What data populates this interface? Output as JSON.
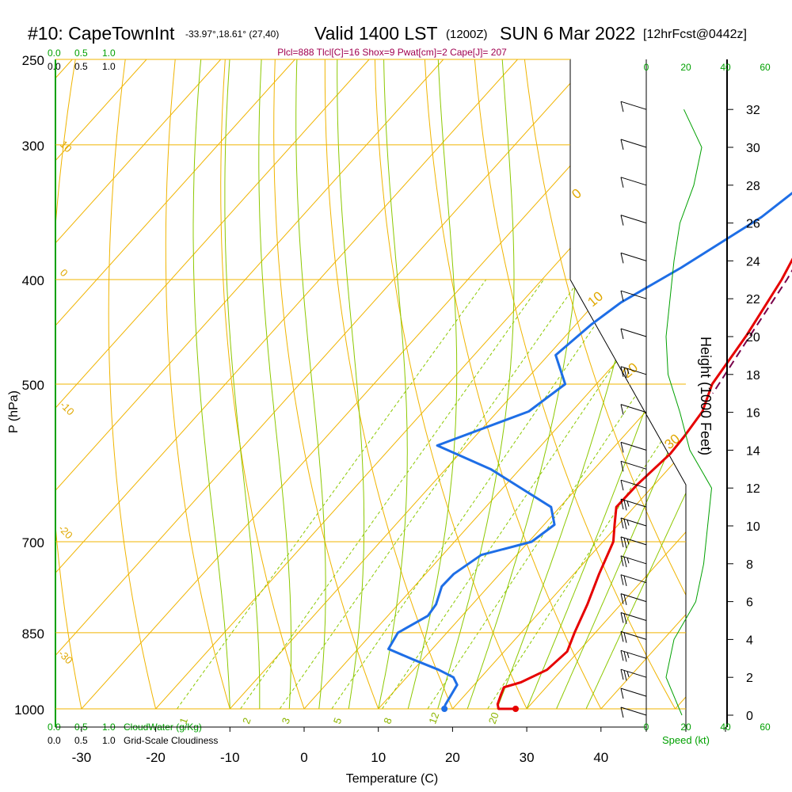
{
  "header": {
    "station": "#10: CapeTownInt",
    "coords": "-33.97°,18.61° (27,40)",
    "valid": "Valid 1400 LST",
    "zulu": "(1200Z)",
    "date": "SUN 6 Mar 2022",
    "forecast": "[12hrFcst@0442z]",
    "indices": "Plcl=888 Tlcl[C]=16 Shox=9 Pwat[cm]=2 Cape[J]= 207"
  },
  "axes": {
    "xlabel": "Temperature (C)",
    "ylabel": "P (hPa)",
    "height_label": "Height (1000 Feet)",
    "speed_label": "Speed (kt)",
    "cloudwater_label": "CloudWater (g/Kg)",
    "cloudiness_label": "Grid-Scale Cloudiness",
    "cloud_scale_green": [
      "0.0",
      "0.5",
      "1.0"
    ],
    "cloud_scale_black": [
      "0.0",
      "0.5",
      "1.0"
    ],
    "speed_ticks_green": [
      "0",
      "20",
      "40",
      "60"
    ],
    "speed_ticks_black": [
      "0",
      "20",
      "40"
    ]
  },
  "colors": {
    "isotherm": "#f0b400",
    "dry_adiabat": "#f0b400",
    "moist_adiabat": "#8cc800",
    "mixing_ratio": "#8cc800",
    "temperature": "#e60000",
    "dewpoint": "#1e6ee6",
    "parcel": "#78004a",
    "indices": "#a00050",
    "cloud_green": "#00a000"
  },
  "chart_data": {
    "type": "line",
    "diagram": "skew-T log-P",
    "pressure_ticks": [
      250,
      300,
      400,
      500,
      700,
      850,
      1000
    ],
    "temperature_ticks": [
      -30,
      -20,
      -10,
      0,
      10,
      20,
      30,
      40
    ],
    "height_ticks_kft": [
      0,
      2,
      4,
      6,
      8,
      10,
      12,
      14,
      16,
      18,
      20,
      22,
      24,
      26,
      28,
      30,
      32
    ],
    "mixing_ratio_labels": [
      "1",
      "2",
      "3",
      "5",
      "8",
      "12",
      "20"
    ],
    "isotherm_labels": [
      "10",
      "0",
      "-10",
      "-20",
      "-30"
    ],
    "dry_adiabat_labels": [
      "0",
      "10",
      "20",
      "30"
    ],
    "series": [
      {
        "name": "Temperature",
        "points": [
          [
            1000,
            28.5
          ],
          [
            1000,
            26.2
          ],
          [
            990,
            25.5
          ],
          [
            970,
            24.8
          ],
          [
            955,
            24.3
          ],
          [
            945,
            26.0
          ],
          [
            920,
            28.0
          ],
          [
            885,
            28.5
          ],
          [
            850,
            27.2
          ],
          [
            800,
            25.5
          ],
          [
            750,
            23.4
          ],
          [
            700,
            21.4
          ],
          [
            675,
            19.5
          ],
          [
            650,
            17.6
          ],
          [
            620,
            17.7
          ],
          [
            580,
            18.4
          ],
          [
            560,
            18.2
          ],
          [
            530,
            17.6
          ],
          [
            500,
            15.6
          ],
          [
            450,
            14.3
          ],
          [
            400,
            12.3
          ],
          [
            350,
            9.2
          ],
          [
            300,
            6.1
          ],
          [
            270,
            3.3
          ],
          [
            258,
            1.9
          ]
        ]
      },
      {
        "name": "Dewpoint",
        "points": [
          [
            1000,
            18.8
          ],
          [
            990,
            18.5
          ],
          [
            950,
            17.7
          ],
          [
            935,
            16.3
          ],
          [
            920,
            13.4
          ],
          [
            900,
            8.7
          ],
          [
            880,
            4.1
          ],
          [
            850,
            3.4
          ],
          [
            820,
            5.4
          ],
          [
            800,
            5.1
          ],
          [
            770,
            3.7
          ],
          [
            750,
            3.8
          ],
          [
            720,
            5.2
          ],
          [
            700,
            10.4
          ],
          [
            675,
            11.4
          ],
          [
            650,
            8.8
          ],
          [
            600,
            -3.8
          ],
          [
            570,
            -14.0
          ],
          [
            530,
            -5.8
          ],
          [
            500,
            -4.2
          ],
          [
            470,
            -9.0
          ],
          [
            440,
            -7.9
          ],
          [
            420,
            -6.6
          ],
          [
            390,
            -2.7
          ],
          [
            350,
            2.0
          ],
          [
            330,
            3.4
          ],
          [
            300,
            0.5
          ],
          [
            265,
            -5.5
          ]
        ]
      },
      {
        "name": "Parcel",
        "points": [
          [
            300,
            7.3
          ],
          [
            350,
            10.3
          ],
          [
            400,
            13.0
          ],
          [
            450,
            14.8
          ],
          [
            500,
            16.5
          ],
          [
            510,
            16.8
          ]
        ]
      }
    ],
    "wind_barbs": [
      {
        "height_kft": 0,
        "speed_kt": 10
      },
      {
        "height_kft": 1,
        "speed_kt": 10
      },
      {
        "height_kft": 2,
        "speed_kt": 15
      },
      {
        "height_kft": 3,
        "speed_kt": 15
      },
      {
        "height_kft": 4,
        "speed_kt": 20
      },
      {
        "height_kft": 5,
        "speed_kt": 20
      },
      {
        "height_kft": 6,
        "speed_kt": 20
      },
      {
        "height_kft": 7,
        "speed_kt": 20
      },
      {
        "height_kft": 8,
        "speed_kt": 15
      },
      {
        "height_kft": 9,
        "speed_kt": 15
      },
      {
        "height_kft": 10,
        "speed_kt": 15
      },
      {
        "height_kft": 11,
        "speed_kt": 15
      },
      {
        "height_kft": 12,
        "speed_kt": 10
      },
      {
        "height_kft": 13,
        "speed_kt": 10
      },
      {
        "height_kft": 14,
        "speed_kt": 10
      },
      {
        "height_kft": 16,
        "speed_kt": 10
      },
      {
        "height_kft": 18,
        "speed_kt": 15
      },
      {
        "height_kft": 20,
        "speed_kt": 10
      },
      {
        "height_kft": 22,
        "speed_kt": 10
      },
      {
        "height_kft": 24,
        "speed_kt": 10
      },
      {
        "height_kft": 26,
        "speed_kt": 10
      },
      {
        "height_kft": 28,
        "speed_kt": 10
      },
      {
        "height_kft": 30,
        "speed_kt": 10
      },
      {
        "height_kft": 32,
        "speed_kt": 10
      }
    ],
    "wind_speed_profile": [
      {
        "height_kft": 0,
        "speed_kt": 18
      },
      {
        "height_kft": 2,
        "speed_kt": 10
      },
      {
        "height_kft": 4,
        "speed_kt": 14
      },
      {
        "height_kft": 6,
        "speed_kt": 25
      },
      {
        "height_kft": 8,
        "speed_kt": 29
      },
      {
        "height_kft": 10,
        "speed_kt": 31
      },
      {
        "height_kft": 12,
        "speed_kt": 33
      },
      {
        "height_kft": 14,
        "speed_kt": 22
      },
      {
        "height_kft": 16,
        "speed_kt": 17
      },
      {
        "height_kft": 18,
        "speed_kt": 11
      },
      {
        "height_kft": 20,
        "speed_kt": 10
      },
      {
        "height_kft": 22,
        "speed_kt": 12
      },
      {
        "height_kft": 24,
        "speed_kt": 14
      },
      {
        "height_kft": 26,
        "speed_kt": 17
      },
      {
        "height_kft": 28,
        "speed_kt": 24
      },
      {
        "height_kft": 30,
        "speed_kt": 28
      },
      {
        "height_kft": 32,
        "speed_kt": 19
      }
    ]
  }
}
